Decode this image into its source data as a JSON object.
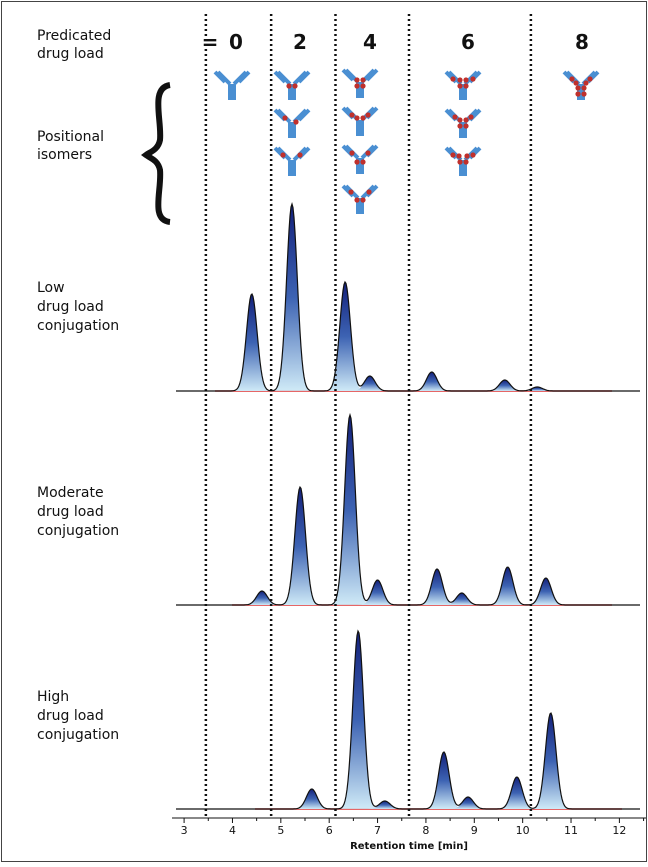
{
  "chart_data": {
    "type": "chromatogram",
    "header_lines": [
      "Predicated",
      "drug load"
    ],
    "isomer_lines": [
      "Positional",
      "isomers"
    ],
    "load_labels": [
      "=",
      "0",
      "2",
      "4",
      "6",
      "8"
    ],
    "dividers": [
      3.45,
      4.8,
      6.13,
      7.65,
      10.17
    ],
    "x_label": "Retention time [min]",
    "xlim": [
      2.75,
      12.55
    ],
    "xticks": [
      3,
      4,
      5,
      6,
      7,
      8,
      9,
      10,
      11,
      12
    ],
    "series": [
      {
        "name_lines": [
          "Low",
          "drug load",
          "conjugation"
        ],
        "x": [
          4.4,
          5.23,
          6.33,
          6.84,
          8.12,
          9.63,
          10.3
        ],
        "values": [
          97,
          187,
          109,
          15,
          19,
          11,
          4
        ]
      },
      {
        "name_lines": [
          "Moderate",
          "drug load",
          "conjugation"
        ],
        "x": [
          4.61,
          5.4,
          6.43,
          7.0,
          8.23,
          8.74,
          9.69,
          10.48
        ],
        "values": [
          14,
          118,
          190,
          25,
          36,
          12,
          38,
          27
        ]
      },
      {
        "name_lines": [
          "High",
          "drug load",
          "conjugation"
        ],
        "x": [
          5.64,
          6.6,
          7.15,
          8.37,
          8.87,
          9.88,
          10.58
        ],
        "values": [
          20,
          178,
          8,
          57,
          12,
          32,
          96
        ]
      }
    ]
  }
}
